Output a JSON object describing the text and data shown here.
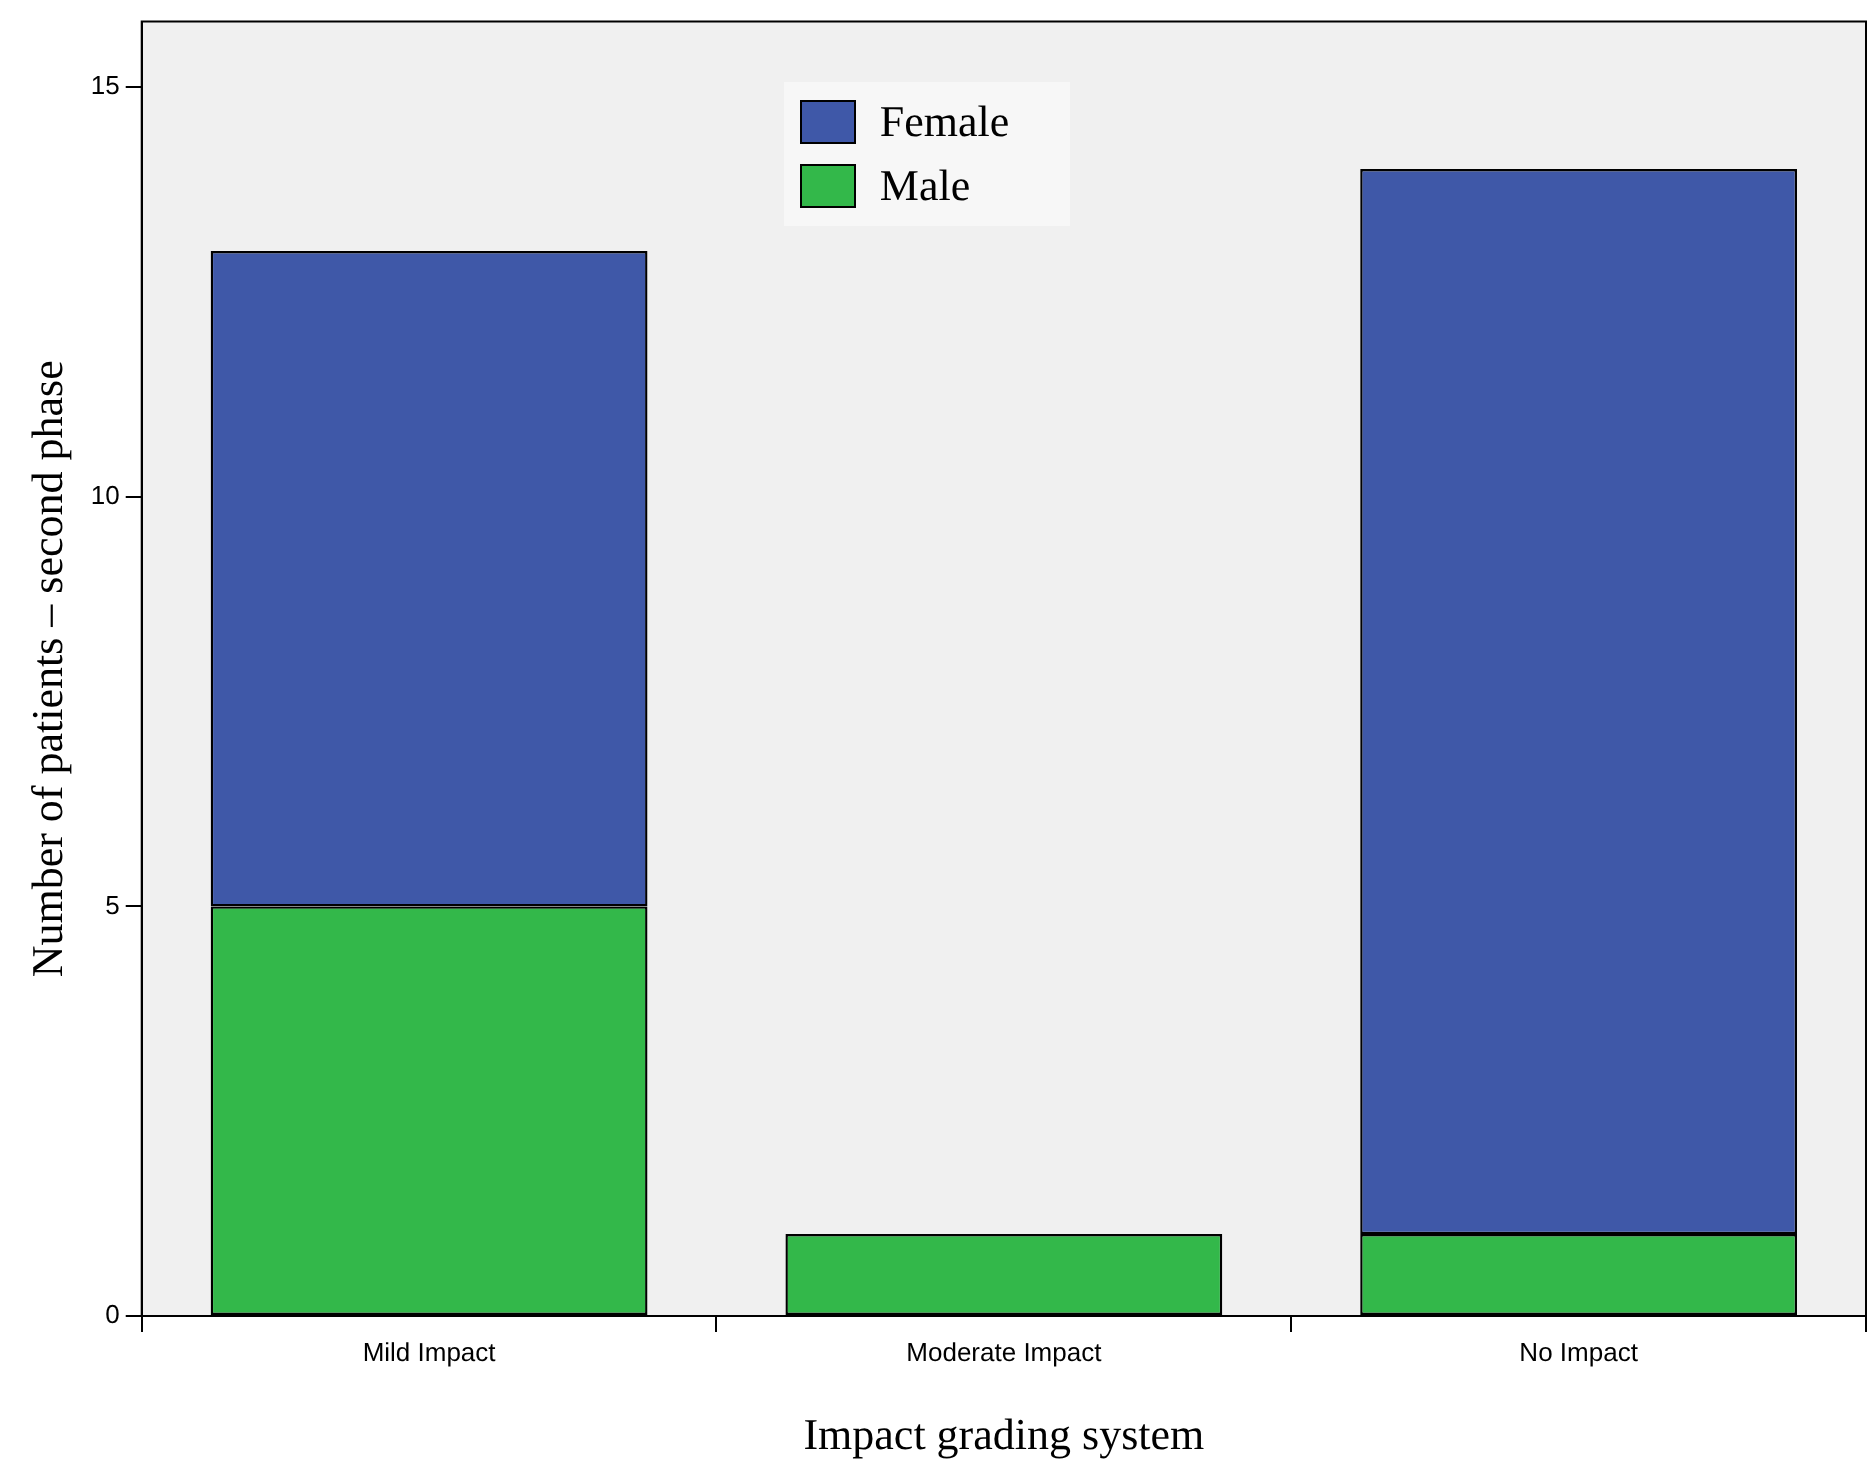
{
  "chart_data": {
    "type": "bar",
    "stacked": true,
    "xlabel": "Impact grading system",
    "ylabel": "Number of patients – second phase",
    "categories": [
      "Mild Impact",
      "Moderate Impact",
      "No Impact"
    ],
    "series": [
      {
        "name": "Male",
        "color": "#33b84a",
        "values": [
          5,
          1,
          1
        ]
      },
      {
        "name": "Female",
        "color": "#3f58a8",
        "values": [
          8,
          0,
          13
        ]
      }
    ],
    "ylim": [
      0,
      15.8
    ],
    "yticks": [
      0,
      5,
      10,
      15
    ],
    "grid": false,
    "legend": "top"
  }
}
